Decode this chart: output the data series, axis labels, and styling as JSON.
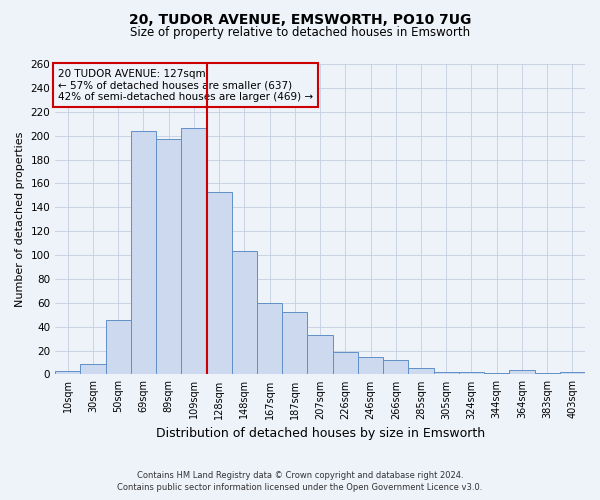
{
  "title": "20, TUDOR AVENUE, EMSWORTH, PO10 7UG",
  "subtitle": "Size of property relative to detached houses in Emsworth",
  "xlabel": "Distribution of detached houses by size in Emsworth",
  "ylabel": "Number of detached properties",
  "bar_labels": [
    "10sqm",
    "30sqm",
    "50sqm",
    "69sqm",
    "89sqm",
    "109sqm",
    "128sqm",
    "148sqm",
    "167sqm",
    "187sqm",
    "207sqm",
    "226sqm",
    "246sqm",
    "266sqm",
    "285sqm",
    "305sqm",
    "324sqm",
    "344sqm",
    "364sqm",
    "383sqm",
    "403sqm"
  ],
  "bar_values": [
    3,
    9,
    46,
    204,
    197,
    206,
    153,
    103,
    60,
    52,
    33,
    19,
    15,
    12,
    5,
    2,
    2,
    1,
    4,
    1,
    2
  ],
  "bar_color": "#ccd9ef",
  "bar_edge_color": "#6090c8",
  "vline_color": "#cc0000",
  "vline_bar_index": 6,
  "annotation_line1": "20 TUDOR AVENUE: 127sqm",
  "annotation_line2": "← 57% of detached houses are smaller (637)",
  "annotation_line3": "42% of semi-detached houses are larger (469) →",
  "annotation_box_edge_color": "#cc0000",
  "ylim": [
    0,
    260
  ],
  "yticks": [
    0,
    20,
    40,
    60,
    80,
    100,
    120,
    140,
    160,
    180,
    200,
    220,
    240,
    260
  ],
  "footer_line1": "Contains HM Land Registry data © Crown copyright and database right 2024.",
  "footer_line2": "Contains public sector information licensed under the Open Government Licence v3.0.",
  "background_color": "#eef2f9",
  "grid_color": "#c5cfe0",
  "title_fontsize": 10,
  "subtitle_fontsize": 8.5,
  "ylabel_fontsize": 8,
  "xlabel_fontsize": 9,
  "ytick_fontsize": 7.5,
  "xtick_fontsize": 7,
  "annotation_fontsize": 7.5,
  "footer_fontsize": 6
}
